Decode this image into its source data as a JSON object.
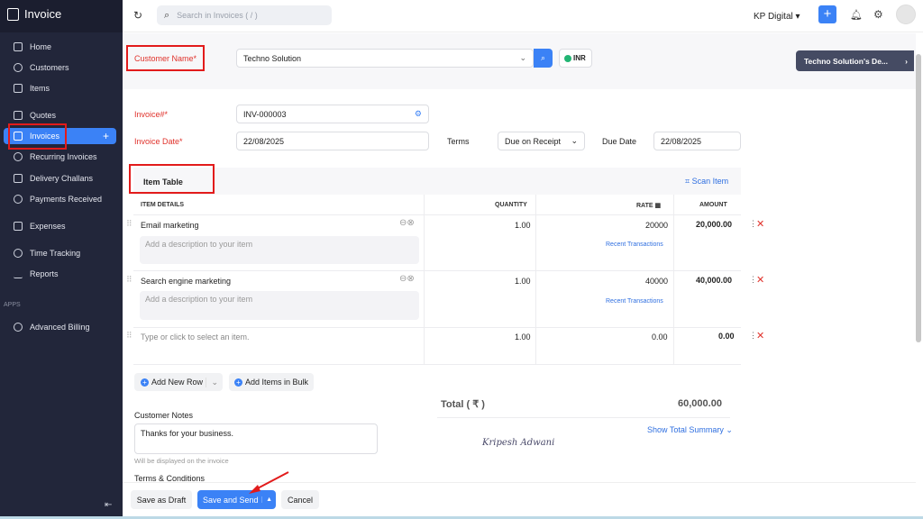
{
  "app": {
    "title": "Invoice"
  },
  "sidebar": {
    "items": [
      {
        "label": "Home",
        "icon": "home-icon"
      },
      {
        "label": "Customers",
        "icon": "user-icon"
      },
      {
        "label": "Items",
        "icon": "bag-icon"
      },
      {
        "label": "Quotes",
        "icon": "quote-icon"
      },
      {
        "label": "Invoices",
        "icon": "invoice-icon",
        "active": true
      },
      {
        "label": "Recurring Invoices",
        "icon": "recurring-icon"
      },
      {
        "label": "Delivery Challans",
        "icon": "truck-icon"
      },
      {
        "label": "Payments Received",
        "icon": "payment-icon"
      },
      {
        "label": "Expenses",
        "icon": "receipt-icon"
      },
      {
        "label": "Time Tracking",
        "icon": "stopwatch-icon"
      },
      {
        "label": "Reports",
        "icon": "chart-icon"
      }
    ],
    "apps_heading": "APPS",
    "apps": [
      {
        "label": "Advanced Billing",
        "icon": "billing-icon"
      }
    ]
  },
  "topbar": {
    "search_placeholder": "Search in Invoices ( / )",
    "org": "KP Digital"
  },
  "form": {
    "customer_label": "Customer Name*",
    "customer_value": "Techno Solution",
    "currency": "INR",
    "customer_panel": "Techno Solution's De...",
    "invoice_no_label": "Invoice#*",
    "invoice_no": "INV-000003",
    "invoice_date_label": "Invoice Date*",
    "invoice_date": "22/08/2025",
    "terms_label": "Terms",
    "terms": "Due on Receipt",
    "due_date_label": "Due Date",
    "due_date": "22/08/2025"
  },
  "item_table": {
    "title": "Item Table",
    "scan": "Scan Item",
    "headers": [
      "ITEM DETAILS",
      "QUANTITY",
      "RATE",
      "AMOUNT"
    ],
    "desc_placeholder": "Add a description to your item",
    "recent": "Recent Transactions",
    "rows": [
      {
        "name": "Email marketing",
        "qty": "1.00",
        "rate": "20000",
        "amount": "20,000.00"
      },
      {
        "name": "Search engine marketing",
        "qty": "1.00",
        "rate": "40000",
        "amount": "40,000.00"
      },
      {
        "name": "Type or click to select an item.",
        "qty": "1.00",
        "rate": "0.00",
        "amount": "0.00"
      }
    ]
  },
  "actions": {
    "add_row": "Add New Row",
    "add_bulk": "Add Items in Bulk"
  },
  "totals": {
    "label": "Total ( ₹ )",
    "value": "60,000.00",
    "summary": "Show Total Summary"
  },
  "notes": {
    "label": "Customer Notes",
    "value": "Thanks for your business.",
    "hint": "Will be displayed on the invoice",
    "terms_label": "Terms & Conditions"
  },
  "signature": "Kripesh Adwani",
  "footer": {
    "draft": "Save as Draft",
    "send": "Save and Send",
    "cancel": "Cancel"
  },
  "colors": {
    "accent": "#3b82f6",
    "sidebar": "#22263a",
    "required": "#e0322b"
  }
}
